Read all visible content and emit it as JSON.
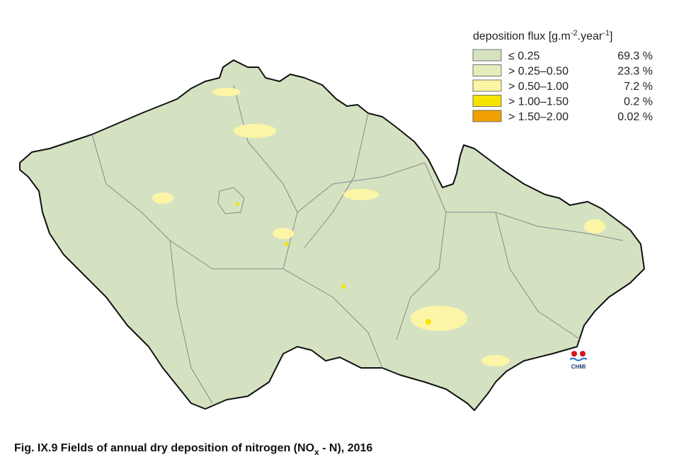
{
  "legend": {
    "title_parts": [
      "deposition flux [g.m",
      "-2",
      ".year",
      "-1",
      "]"
    ],
    "items": [
      {
        "label": "≤ 0.25",
        "share": "69.3 %",
        "color": "#d4e2c2"
      },
      {
        "label": "> 0.25–0.50",
        "share": "23.3 %",
        "color": "#e6ecbb"
      },
      {
        "label": "> 0.50–1.00",
        "share": "7.2 %",
        "color": "#fdf5a6"
      },
      {
        "label": "> 1.00–1.50",
        "share": "0.2 %",
        "color": "#f5e400"
      },
      {
        "label": "> 1.50–2.00",
        "share": "0.02 %",
        "color": "#f0a000"
      }
    ]
  },
  "logo": "CHMI",
  "caption_parts": [
    "Fig. IX.9  Fields of annual dry deposition of nitrogen (NO",
    "x",
    " - N), 2016"
  ]
}
